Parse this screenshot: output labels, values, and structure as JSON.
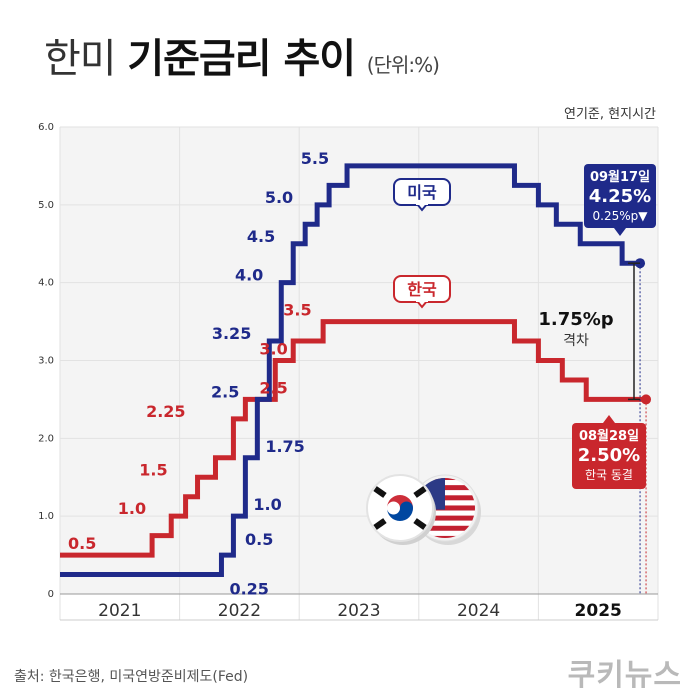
{
  "title": {
    "part1": "한미",
    "part2": "기준금리 추이",
    "unit": "(단위:%)"
  },
  "note": "연기준, 현지시간",
  "source": "출처: 한국은행, 미국연방준비제도(Fed)",
  "logo": "쿠키뉴스",
  "colors": {
    "us": "#1f2a8a",
    "kr": "#c9272d",
    "grid": "#e2e2e2",
    "plot_bg": "#f4f4f4"
  },
  "chart_data": {
    "type": "line",
    "step": true,
    "ylim": [
      0,
      6.0
    ],
    "yticks": [
      "0",
      "1.0",
      "2.0",
      "3.0",
      "4.0",
      "5.0",
      "6.0"
    ],
    "xlim": [
      2020.5,
      2025.5
    ],
    "xticks": [
      {
        "label": "2021",
        "x": 2021,
        "bold": false
      },
      {
        "label": "2022",
        "x": 2022,
        "bold": false
      },
      {
        "label": "2023",
        "x": 2023,
        "bold": false
      },
      {
        "label": "2024",
        "x": 2024,
        "bold": false
      },
      {
        "label": "2025",
        "x": 2025,
        "bold": true
      }
    ],
    "series": [
      {
        "key": "us",
        "name": "미국",
        "color": "#1f2a8a",
        "x": [
          2020.5,
          2021.7,
          2021.85,
          2021.95,
          2022.05,
          2022.15,
          2022.25,
          2022.35,
          2022.45,
          2022.55,
          2022.65,
          2022.75,
          2022.9,
          2023.05,
          2023.3,
          2023.5,
          2023.75,
          2024.0,
          2024.3,
          2024.5,
          2024.65,
          2024.85,
          2025.0,
          2025.2,
          2025.35
        ],
        "values": [
          0.25,
          0.25,
          0.5,
          1.0,
          1.75,
          2.5,
          3.25,
          4.0,
          4.5,
          4.75,
          5.0,
          5.25,
          5.5,
          5.5,
          5.5,
          5.5,
          5.5,
          5.5,
          5.25,
          5.0,
          4.75,
          4.5,
          4.5,
          4.25,
          4.25
        ],
        "labels": [
          {
            "text": "0.25",
            "x": 2021.85,
            "y": 0.25,
            "side": "below"
          },
          {
            "text": "0.5",
            "x": 2021.98,
            "y": 0.55,
            "side": "right"
          },
          {
            "text": "1.0",
            "x": 2022.05,
            "y": 1.0,
            "side": "right"
          },
          {
            "text": "1.75",
            "x": 2022.15,
            "y": 1.75,
            "side": "right"
          },
          {
            "text": "2.5",
            "x": 2022.05,
            "y": 2.5,
            "side": "left"
          },
          {
            "text": "3.25",
            "x": 2022.15,
            "y": 3.25,
            "side": "left"
          },
          {
            "text": "4.0",
            "x": 2022.25,
            "y": 4.0,
            "side": "left"
          },
          {
            "text": "4.5",
            "x": 2022.35,
            "y": 4.5,
            "side": "left"
          },
          {
            "text": "5.0",
            "x": 2022.5,
            "y": 5.0,
            "side": "left"
          },
          {
            "text": "5.5",
            "x": 2022.8,
            "y": 5.5,
            "side": "left"
          }
        ]
      },
      {
        "key": "kr",
        "name": "한국",
        "color": "#c9272d",
        "x": [
          2020.5,
          2021.1,
          2021.27,
          2021.43,
          2021.55,
          2021.65,
          2021.8,
          2021.95,
          2022.05,
          2022.3,
          2022.45,
          2022.7,
          2023.0,
          2023.5,
          2024.0,
          2024.3,
          2024.5,
          2024.7,
          2024.9,
          2025.2,
          2025.4
        ],
        "values": [
          0.5,
          0.5,
          0.75,
          1.0,
          1.25,
          1.5,
          1.75,
          2.25,
          2.5,
          3.0,
          3.25,
          3.5,
          3.5,
          3.5,
          3.5,
          3.25,
          3.0,
          2.75,
          2.5,
          2.5,
          2.5
        ],
        "labels": [
          {
            "text": "0.5",
            "x": 2020.5,
            "y": 0.5,
            "side": "right"
          },
          {
            "text": "1.0",
            "x": 2021.27,
            "y": 1.0,
            "side": "left"
          },
          {
            "text": "1.5",
            "x": 2021.45,
            "y": 1.5,
            "side": "left"
          },
          {
            "text": "2.25",
            "x": 2021.6,
            "y": 2.25,
            "side": "left"
          },
          {
            "text": "2.5",
            "x": 2022.1,
            "y": 2.5,
            "side": "right"
          },
          {
            "text": "3.0",
            "x": 2022.1,
            "y": 3.0,
            "side": "right"
          },
          {
            "text": "3.5",
            "x": 2022.3,
            "y": 3.5,
            "side": "right"
          }
        ]
      }
    ],
    "callouts": {
      "us": {
        "tag": "미국",
        "date": "09월17일",
        "value": "4.25%",
        "change": "0.25%p▼"
      },
      "kr": {
        "tag": "한국",
        "date": "08월28일",
        "value": "2.50%",
        "change": "한국 동결"
      }
    },
    "gap": {
      "value": "1.75%p",
      "label": "격차"
    }
  }
}
